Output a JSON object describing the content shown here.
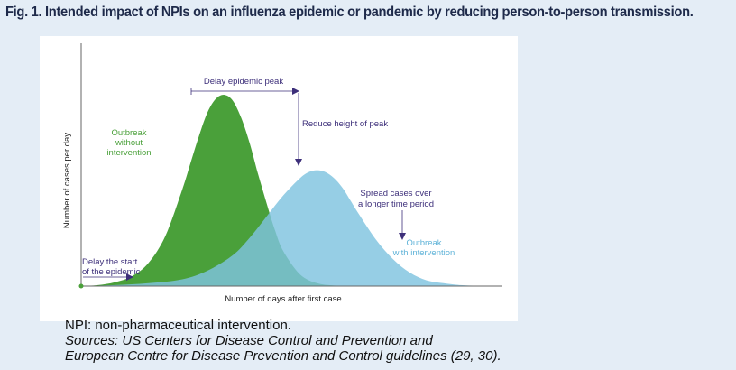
{
  "figure": {
    "title": "Fig. 1. Intended impact of NPIs on an influenza epidemic or pandemic by reducing person-to-person transmission.",
    "note": "NPI: non-pharmaceutical intervention.",
    "sources_line1": "Sources: US Centers for Disease Control and Prevention and",
    "sources_line2": "European Centre for Disease Prevention and Control guidelines (29, 30)."
  },
  "chart_data": {
    "type": "area",
    "xlabel": "Number of days after first case",
    "ylabel": "Number of cases per day",
    "x_range": [
      0,
      100
    ],
    "y_range": [
      0,
      100
    ],
    "ticks_shown": false,
    "grid": false,
    "series": [
      {
        "name": "Outbreak without intervention",
        "color": "#4aa03a",
        "x": [
          0,
          4,
          8,
          12,
          16,
          20,
          24,
          26,
          28,
          30,
          32,
          34,
          36,
          38,
          40,
          42,
          44,
          46,
          48,
          52,
          56,
          60,
          64,
          68,
          72,
          76
        ],
        "y": [
          0,
          0.5,
          2,
          5,
          12,
          26,
          50,
          64,
          78,
          90,
          97,
          99,
          96,
          87,
          74,
          58,
          43,
          29,
          18,
          6,
          1.5,
          0.3,
          0,
          0,
          0,
          0
        ]
      },
      {
        "name": "Outbreak with intervention",
        "color": "#7fc3df",
        "x": [
          0,
          8,
          16,
          24,
          30,
          36,
          40,
          44,
          48,
          52,
          54,
          56,
          58,
          60,
          62,
          64,
          66,
          70,
          74,
          78,
          82,
          86,
          90,
          94,
          98,
          100
        ],
        "y": [
          0,
          0.5,
          1.5,
          3.5,
          8,
          16,
          25,
          36,
          47,
          56,
          59,
          60,
          59,
          56,
          51,
          44,
          37,
          24,
          14,
          7,
          3,
          1.5,
          0.5,
          0.2,
          0,
          0
        ]
      }
    ],
    "annotations": [
      {
        "id": "delay-peak",
        "text": "Delay epidemic peak",
        "color": "#3d2f7a"
      },
      {
        "id": "reduce-height",
        "text": "Reduce height of peak",
        "color": "#3d2f7a"
      },
      {
        "id": "spread-cases",
        "line1": "Spread cases over",
        "line2": "a longer time period",
        "color": "#3d2f7a"
      },
      {
        "id": "delay-start",
        "line1": "Delay the start",
        "line2": "of the epidemic",
        "color": "#3d2f7a"
      },
      {
        "id": "label-green",
        "line1": "Outbreak",
        "line2": "without",
        "line3": "intervention",
        "color": "#4aa03a"
      },
      {
        "id": "label-blue",
        "line1": "Outbreak",
        "line2": "with intervention",
        "color": "#5fb3d8"
      }
    ]
  }
}
